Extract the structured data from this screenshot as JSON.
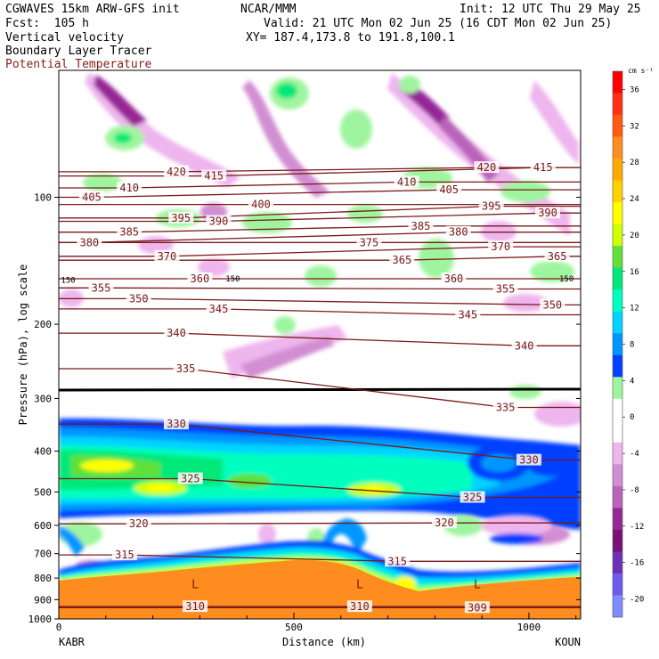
{
  "header": {
    "model": "CGWAVES 15km ARW-GFS init",
    "org": "NCAR/MMM",
    "init": "Init: 12 UTC Thu 29 May 25",
    "fcst": "Fcst:  105 h",
    "valid": "Valid: 21 UTC Mon 02 Jun 25 (16 CDT Mon 02 Jun 25)",
    "field1": "Vertical velocity",
    "field2": "Boundary Layer Tracer",
    "field3": "Potential Temperature",
    "xy": "XY= 187.4,173.8 to 191.8,100.1"
  },
  "colors": {
    "theta": "#7a1a1a",
    "field3_label": "#8b1a1a"
  },
  "chart_data": {
    "type": "heatmap",
    "xlabel": "Distance (km)",
    "ylabel": "Pressure (hPa), log scale",
    "xlim": [
      0,
      1110
    ],
    "ylim": [
      1000,
      50
    ],
    "y_scale": "log",
    "x_ticks": [
      "0",
      "500",
      "1000"
    ],
    "x_tick_values": [
      0,
      500,
      1000
    ],
    "y_ticks": [
      "100",
      "200",
      "300",
      "400",
      "500",
      "600",
      "700",
      "800",
      "900",
      "1000"
    ],
    "y_tick_values": [
      100,
      200,
      300,
      400,
      500,
      600,
      700,
      800,
      900,
      1000
    ],
    "endpoints": {
      "left": "KABR",
      "right": "KOUN"
    },
    "colorbar": {
      "units": "cm s⁻¹",
      "labels": [
        "36",
        "32",
        "28",
        "24",
        "20",
        "16",
        "12",
        "8",
        "4",
        "0",
        "-4",
        "-8",
        "-12",
        "-16",
        "-20"
      ],
      "values": [
        36,
        32,
        28,
        24,
        20,
        16,
        12,
        8,
        4,
        0,
        -4,
        -8,
        -12,
        -16,
        -20
      ],
      "colors": [
        "#ff0000",
        "#ff3010",
        "#ff5a10",
        "#ff8c1e",
        "#ffaa00",
        "#ffd200",
        "#ffff00",
        "#d2ff00",
        "#60e038",
        "#00e878",
        "#00ffbe",
        "#00d4ff",
        "#0096ff",
        "#0040ff",
        "#9ff59f",
        "#ffffff",
        "#ffffff",
        "#eeb5ee",
        "#d28ed2",
        "#b964b9",
        "#962896",
        "#781078",
        "#6e30b4",
        "#6e5aeb",
        "#7d8cff"
      ]
    },
    "theta_contour_labels": [
      {
        "text": "420",
        "x": 250,
        "p": 87
      },
      {
        "text": "415",
        "x": 330,
        "p": 89
      },
      {
        "text": "410",
        "x": 150,
        "p": 95
      },
      {
        "text": "405",
        "x": 70,
        "p": 100
      },
      {
        "text": "400",
        "x": 430,
        "p": 104
      },
      {
        "text": "395",
        "x": 260,
        "p": 112
      },
      {
        "text": "390",
        "x": 340,
        "p": 114
      },
      {
        "text": "385",
        "x": 150,
        "p": 121
      },
      {
        "text": "380",
        "x": 65,
        "p": 128
      },
      {
        "text": "375",
        "x": 660,
        "p": 128
      },
      {
        "text": "370",
        "x": 230,
        "p": 138
      },
      {
        "text": "365",
        "x": 730,
        "p": 141
      },
      {
        "text": "360",
        "x": 300,
        "p": 156
      },
      {
        "text": "355",
        "x": 90,
        "p": 164
      },
      {
        "text": "350",
        "x": 170,
        "p": 174
      },
      {
        "text": "345",
        "x": 340,
        "p": 184
      },
      {
        "text": "340",
        "x": 250,
        "p": 210
      },
      {
        "text": "335",
        "x": 270,
        "p": 255
      },
      {
        "text": "330",
        "x": 250,
        "p": 345
      },
      {
        "text": "325",
        "x": 280,
        "p": 465
      },
      {
        "text": "320",
        "x": 170,
        "p": 595
      },
      {
        "text": "315",
        "x": 140,
        "p": 705
      },
      {
        "text": "310",
        "x": 290,
        "p": 935
      },
      {
        "text": "420",
        "x": 910,
        "p": 85
      },
      {
        "text": "415",
        "x": 1030,
        "p": 85
      },
      {
        "text": "410",
        "x": 740,
        "p": 92
      },
      {
        "text": "405",
        "x": 830,
        "p": 96
      },
      {
        "text": "395",
        "x": 920,
        "p": 105
      },
      {
        "text": "390",
        "x": 1040,
        "p": 109
      },
      {
        "text": "385",
        "x": 770,
        "p": 117
      },
      {
        "text": "380",
        "x": 850,
        "p": 121
      },
      {
        "text": "370",
        "x": 940,
        "p": 131
      },
      {
        "text": "365",
        "x": 1060,
        "p": 138
      },
      {
        "text": "360",
        "x": 840,
        "p": 156
      },
      {
        "text": "355",
        "x": 950,
        "p": 165
      },
      {
        "text": "350",
        "x": 1050,
        "p": 180
      },
      {
        "text": "345",
        "x": 870,
        "p": 190
      },
      {
        "text": "340",
        "x": 990,
        "p": 225
      },
      {
        "text": "335",
        "x": 950,
        "p": 315
      },
      {
        "text": "330",
        "x": 1000,
        "p": 420
      },
      {
        "text": "325",
        "x": 880,
        "p": 515
      },
      {
        "text": "320",
        "x": 820,
        "p": 592
      },
      {
        "text": "315",
        "x": 720,
        "p": 730
      },
      {
        "text": "310",
        "x": 640,
        "p": 935
      },
      {
        "text": "309",
        "x": 890,
        "p": 940
      }
    ],
    "tracer_labels": [
      {
        "text": "150",
        "x": 20,
        "p": 157
      },
      {
        "text": "150",
        "x": 370,
        "p": 156
      },
      {
        "text": "150",
        "x": 1080,
        "p": 156
      }
    ],
    "low_markers": [
      {
        "text": "L",
        "x": 290,
        "p": 830
      },
      {
        "text": "L",
        "x": 640,
        "p": 830
      },
      {
        "text": "L",
        "x": 890,
        "p": 830
      }
    ]
  }
}
